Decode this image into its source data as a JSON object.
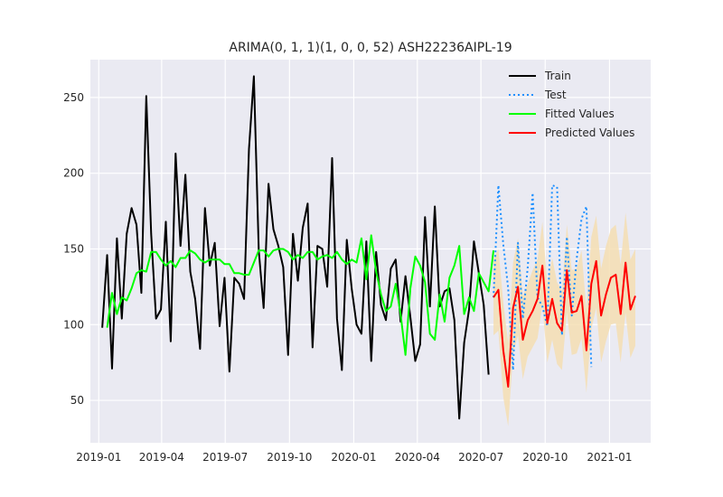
{
  "chart_data": {
    "type": "line",
    "title": "ARIMA(0, 1, 1)(1, 0, 0, 52) ASH22236AIPL-19",
    "xlabel": "",
    "ylabel": "",
    "x_axis": {
      "min": "2018-12-20",
      "max": "2021-03-01",
      "ticks": [
        "2019-01-01",
        "2019-04-01",
        "2019-07-01",
        "2019-10-01",
        "2020-01-01",
        "2020-04-01",
        "2020-07-01",
        "2020-10-01",
        "2021-01-01"
      ],
      "tick_labels": [
        "2019-01",
        "2019-04",
        "2019-07",
        "2019-10",
        "2020-01",
        "2020-04",
        "2020-07",
        "2020-10",
        "2021-01"
      ]
    },
    "y_axis": {
      "min": 22,
      "max": 275,
      "ticks": [
        50,
        100,
        150,
        200,
        250
      ],
      "tick_labels": [
        "50",
        "100",
        "150",
        "200",
        "250"
      ]
    },
    "grid": true,
    "legend_position": "top-right",
    "colors": {
      "background": "#eaeaf2",
      "grid": "#ffffff",
      "train": "#000000",
      "test": "#1e90ff",
      "fitted": "#00ff00",
      "predicted": "#ff0000",
      "confidence": "#f5deb3"
    },
    "train": {
      "name": "Train",
      "start": "2019-01-06",
      "step_days": 7,
      "values": [
        98,
        146,
        71,
        157,
        104,
        160,
        177,
        166,
        121,
        251,
        160,
        104,
        110,
        168,
        89,
        213,
        152,
        199,
        135,
        117,
        84,
        177,
        139,
        154,
        99,
        131,
        69,
        131,
        127,
        117,
        216,
        264,
        149,
        111,
        193,
        163,
        152,
        138,
        80,
        160,
        129,
        164,
        180,
        85,
        152,
        150,
        125,
        210,
        104,
        70,
        156,
        124,
        100,
        94,
        155,
        76,
        148,
        113,
        103,
        137,
        143,
        102,
        132,
        105,
        76,
        87,
        171,
        112,
        178,
        112,
        122,
        124,
        103,
        38,
        88,
        110,
        155,
        134,
        113,
        67
      ]
    },
    "fitted": {
      "name": "Fitted Values",
      "start": "2019-01-13",
      "step_days": 7,
      "values": [
        98,
        121,
        107,
        118,
        116,
        124,
        134,
        136,
        135,
        148,
        148,
        143,
        139,
        142,
        138,
        144,
        144,
        149,
        147,
        143,
        141,
        143,
        143,
        143,
        140,
        140,
        134,
        134,
        133,
        133,
        141,
        149,
        149,
        145,
        149,
        150,
        150,
        148,
        143,
        146,
        144,
        148,
        148,
        143,
        145,
        146,
        144,
        148,
        143,
        140,
        143,
        141,
        157,
        130,
        159,
        135,
        120,
        109,
        112,
        127,
        107,
        80,
        124,
        145,
        139,
        128,
        94,
        90,
        120,
        102,
        131,
        139,
        152,
        107,
        118,
        109,
        134,
        128,
        122,
        149
      ]
    },
    "test": {
      "name": "Test",
      "start": "2020-07-19",
      "step_days": 7,
      "values": [
        118,
        192,
        153,
        124,
        70,
        154,
        104,
        138,
        187,
        118,
        112,
        99,
        192,
        191,
        93,
        158,
        106,
        143,
        170,
        178,
        72
      ]
    },
    "predicted": {
      "name": "Predicted Values",
      "start": "2020-07-19",
      "step_days": 7,
      "values": [
        118,
        123,
        83,
        59,
        111,
        125,
        90,
        103,
        109,
        117,
        139,
        101,
        117,
        101,
        96,
        136,
        108,
        109,
        119,
        83,
        127,
        142,
        106,
        120,
        131,
        133,
        107,
        141,
        110,
        119
      ]
    },
    "confidence_interval": {
      "start": "2020-07-19",
      "step_days": 7,
      "lower": [
        93,
        96,
        52,
        33,
        81,
        93,
        64,
        79,
        85,
        91,
        113,
        75,
        90,
        74,
        70,
        108,
        80,
        81,
        91,
        55,
        97,
        111,
        75,
        89,
        100,
        101,
        75,
        108,
        78,
        86
      ],
      "upper": [
        143,
        150,
        115,
        88,
        141,
        157,
        119,
        127,
        136,
        143,
        168,
        127,
        144,
        128,
        122,
        166,
        136,
        137,
        149,
        110,
        158,
        172,
        137,
        152,
        163,
        166,
        140,
        174,
        143,
        150
      ]
    },
    "series_order": [
      "train",
      "test",
      "fitted",
      "predicted"
    ]
  }
}
